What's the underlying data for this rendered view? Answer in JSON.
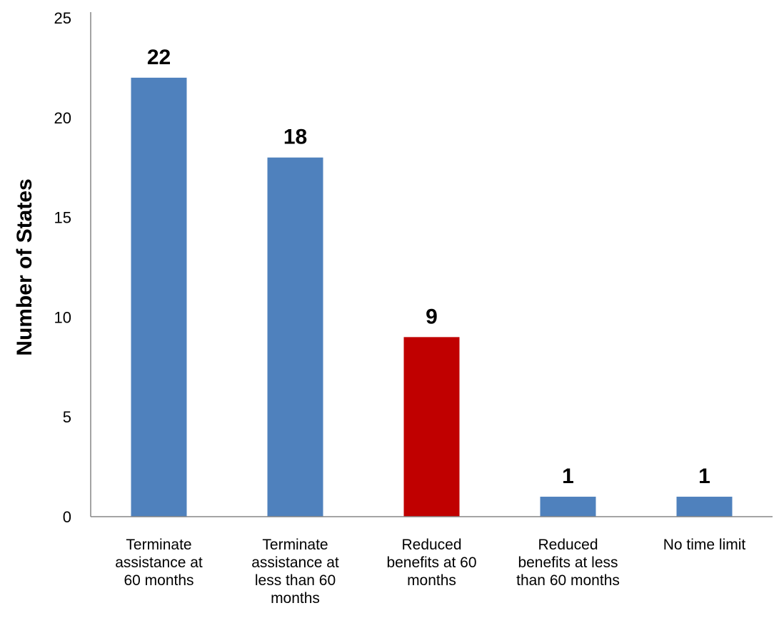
{
  "chart_data": {
    "type": "bar",
    "categories": [
      [
        "Terminate",
        "assistance at",
        "60 months"
      ],
      [
        "Terminate",
        "assistance at",
        "less than 60",
        "months"
      ],
      [
        "Reduced",
        "benefits at 60",
        "months"
      ],
      [
        "Reduced",
        "benefits at less",
        "than 60 months"
      ],
      [
        "No time limit"
      ]
    ],
    "values": [
      22,
      18,
      9,
      1,
      1
    ],
    "data_labels": [
      "22",
      "18",
      "9",
      "1",
      "1"
    ],
    "bar_colors": [
      "#4F81BD",
      "#4F81BD",
      "#C00000",
      "#4F81BD",
      "#4F81BD"
    ],
    "ylabel": "Number of States",
    "xlabel": "",
    "title": "",
    "ylim": [
      0,
      25
    ],
    "yticks": [
      0,
      5,
      10,
      15,
      20,
      25
    ],
    "grid": false,
    "legend": "none"
  }
}
